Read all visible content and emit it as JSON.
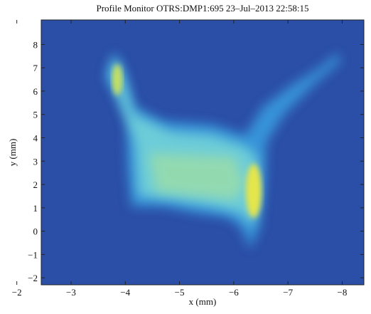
{
  "chart_data": {
    "type": "image",
    "title": "Profile Monitor OTRS:DMP1:695 23–Jul–2013 22:58:15",
    "x_label": "x (mm)",
    "y_label": "y (mm)",
    "xlim": [
      -2.45,
      -8.4
    ],
    "ylim": [
      -2.3,
      9.05
    ],
    "xticks": [
      {
        "value": -2,
        "label": "−2"
      },
      {
        "value": -3,
        "label": "−3"
      },
      {
        "value": -4,
        "label": "−4"
      },
      {
        "value": -5,
        "label": "−5"
      },
      {
        "value": -6,
        "label": "−6"
      },
      {
        "value": -7,
        "label": "−7"
      },
      {
        "value": -8,
        "label": "−8"
      }
    ],
    "yticks": [
      {
        "value": -2,
        "label": "−2"
      },
      {
        "value": -1,
        "label": "−1"
      },
      0,
      1,
      2,
      3,
      4,
      5,
      6,
      7,
      8
    ],
    "background_color": "#2b4ea6"
  }
}
